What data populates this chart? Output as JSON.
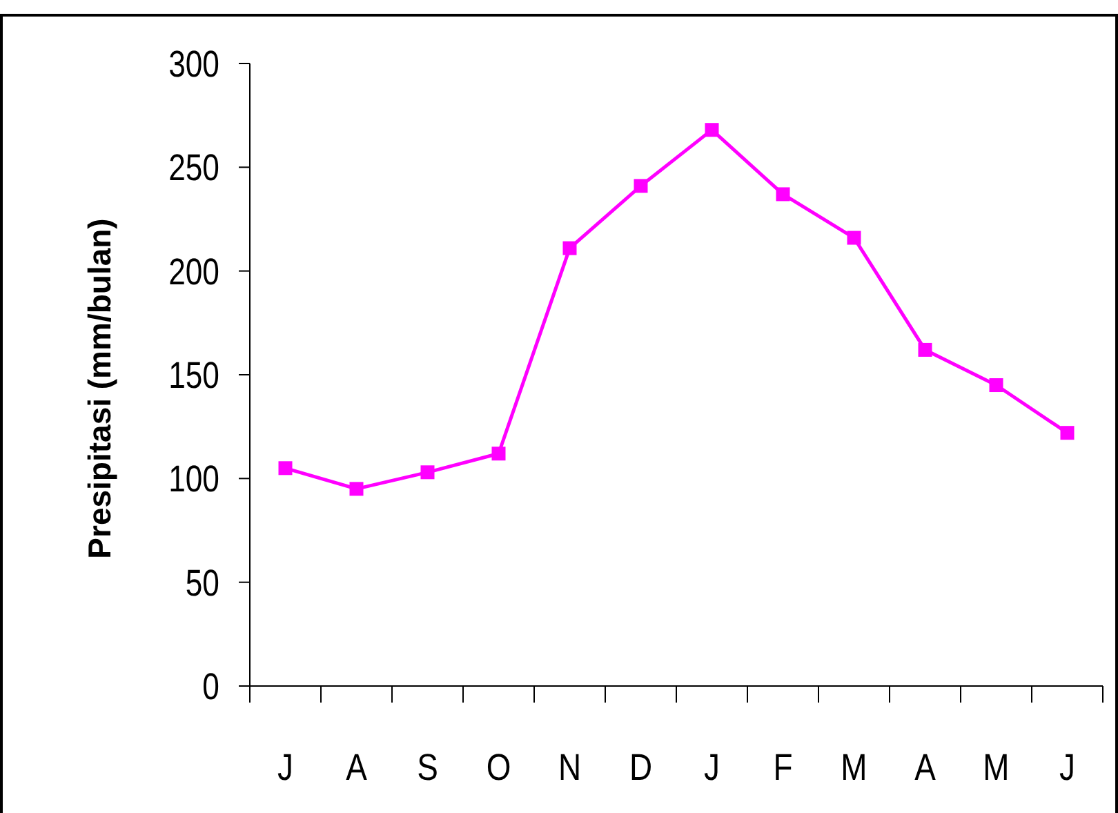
{
  "chart_data": {
    "type": "line",
    "ylabel": "Presipitasi (mm/bulan)",
    "categories": [
      "J",
      "A",
      "S",
      "O",
      "N",
      "D",
      "J",
      "F",
      "M",
      "A",
      "M",
      "J"
    ],
    "series": [
      {
        "color": "#ff00ff",
        "values": [
          105,
          95,
          103,
          112,
          211,
          241,
          268,
          237,
          216,
          162,
          145,
          122
        ]
      }
    ],
    "ylim": [
      0,
      300
    ],
    "yticks": [
      0,
      50,
      100,
      150,
      200,
      250,
      300
    ],
    "marker": "square",
    "line_style": "solid"
  }
}
